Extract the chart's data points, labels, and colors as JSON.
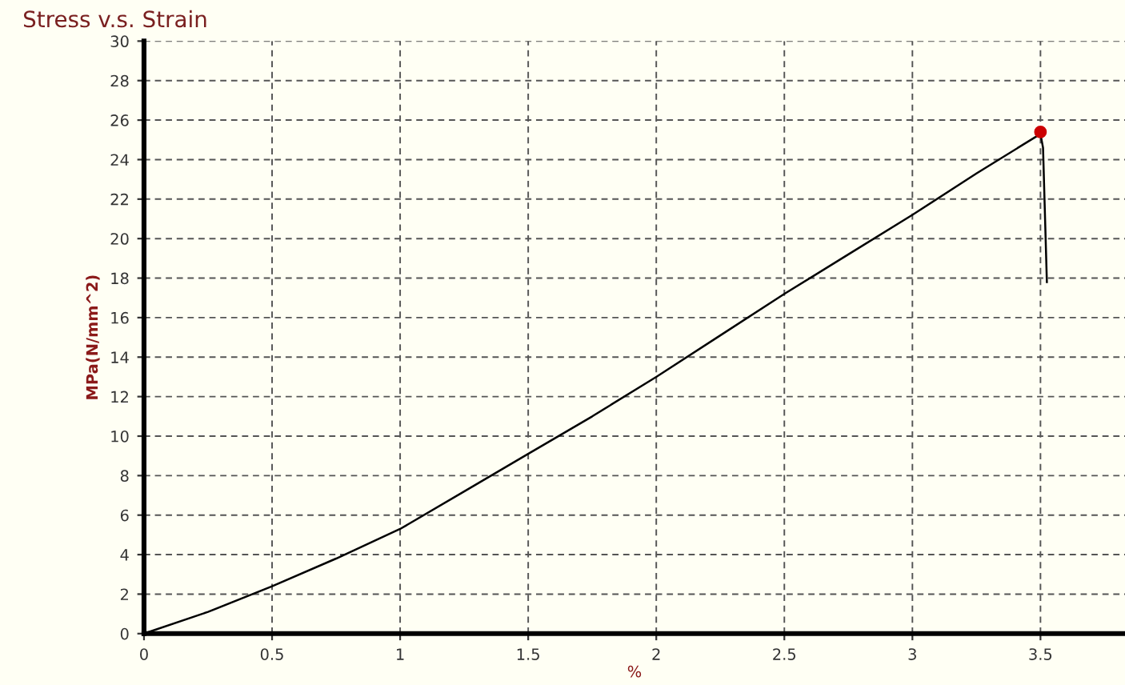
{
  "chart_data": {
    "type": "line",
    "title": "Stress v.s. Strain",
    "xlabel": "%",
    "ylabel": "MPa(N/mm^2)",
    "xlim": [
      0,
      3.83
    ],
    "xticks": [
      0,
      0.5,
      1,
      1.5,
      2,
      2.5,
      3,
      3.5
    ],
    "ylim": [
      0,
      30
    ],
    "yticks": [
      0,
      2,
      4,
      6,
      8,
      10,
      12,
      14,
      16,
      18,
      20,
      22,
      24,
      26,
      28,
      30
    ],
    "grid": true,
    "legend": false,
    "series": [
      {
        "color": "#000000",
        "marker": "none",
        "x": [
          0,
          0.25,
          0.5,
          0.75,
          1,
          1.25,
          1.5,
          1.75,
          2,
          2.25,
          2.5,
          2.75,
          3,
          3.25,
          3.5,
          3.51,
          3.525
        ],
        "values": [
          0,
          1.1,
          2.4,
          3.8,
          5.3,
          7.2,
          9.1,
          11,
          13,
          15.1,
          17.2,
          19.2,
          21.2,
          23.3,
          25.3,
          24.6,
          17.8
        ]
      },
      {
        "type": "scatter",
        "color": "#cc0000",
        "marker": "circle",
        "x": [
          3.5
        ],
        "values": [
          25.4
        ]
      }
    ]
  }
}
